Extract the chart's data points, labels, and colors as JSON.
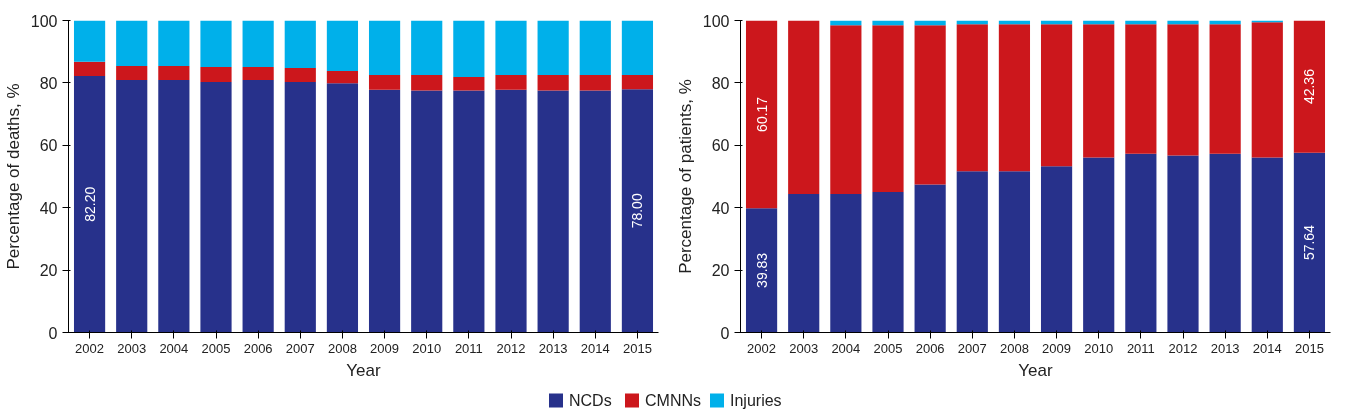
{
  "chart_data": [
    {
      "type": "bar",
      "stacked": true,
      "xlabel": "Year",
      "ylabel": "Percentage of deaths, %",
      "categories": [
        "2002",
        "2003",
        "2004",
        "2005",
        "2006",
        "2007",
        "2008",
        "2009",
        "2010",
        "2011",
        "2012",
        "2013",
        "2014",
        "2015"
      ],
      "ylim": [
        0,
        100
      ],
      "yticks": [
        0,
        20,
        40,
        60,
        80,
        100
      ],
      "grid": false,
      "legend": "bottom",
      "series": [
        {
          "name": "NCDs",
          "color": "#27318b",
          "values": [
            82.2,
            80.9,
            80.9,
            80.3,
            80.9,
            80.3,
            79.9,
            77.8,
            77.6,
            77.6,
            77.8,
            77.6,
            77.6,
            78.0
          ],
          "value_labels": [
            "82.20",
            null,
            null,
            null,
            null,
            null,
            null,
            null,
            null,
            null,
            null,
            null,
            null,
            "78.00"
          ]
        },
        {
          "name": "CMNNs",
          "color": "#cc171c",
          "values": [
            4.6,
            4.5,
            4.5,
            4.8,
            4.2,
            4.5,
            3.9,
            4.7,
            4.9,
            4.3,
            4.7,
            4.9,
            4.9,
            4.5
          ]
        },
        {
          "name": "Injuries",
          "color": "#00b0ea",
          "values": [
            13.2,
            14.6,
            14.6,
            14.9,
            14.9,
            15.2,
            16.2,
            17.5,
            17.5,
            18.1,
            17.5,
            17.5,
            17.5,
            17.5
          ]
        }
      ]
    },
    {
      "type": "bar",
      "stacked": true,
      "xlabel": "Year",
      "ylabel": "Percentage of patients, %",
      "categories": [
        "2002",
        "2003",
        "2004",
        "2005",
        "2006",
        "2007",
        "2008",
        "2009",
        "2010",
        "2011",
        "2012",
        "2013",
        "2014",
        "2015"
      ],
      "ylim": [
        0,
        100
      ],
      "yticks": [
        0,
        20,
        40,
        60,
        80,
        100
      ],
      "grid": false,
      "series": [
        {
          "color": "#27318b",
          "values": [
            39.83,
            44.4,
            44.4,
            45.0,
            47.4,
            51.7,
            51.7,
            53.3,
            56.1,
            57.3,
            56.7,
            57.3,
            56.1,
            57.64
          ],
          "value_labels": [
            "39.83",
            null,
            null,
            null,
            null,
            null,
            null,
            null,
            null,
            null,
            null,
            null,
            null,
            "57.64"
          ]
        },
        {
          "color": "#cc171c",
          "values": [
            60.17,
            55.6,
            54.1,
            53.5,
            51.1,
            47.1,
            47.1,
            45.5,
            42.7,
            41.5,
            42.1,
            41.5,
            43.3,
            42.36
          ],
          "value_labels": [
            "60.17",
            null,
            null,
            null,
            null,
            null,
            null,
            null,
            null,
            null,
            null,
            null,
            null,
            "42.36"
          ]
        },
        {
          "color": "#00b0ea",
          "values": [
            0,
            0,
            1.5,
            1.5,
            1.5,
            1.2,
            1.2,
            1.2,
            1.2,
            1.2,
            1.2,
            1.2,
            0.6,
            0
          ]
        }
      ]
    }
  ]
}
